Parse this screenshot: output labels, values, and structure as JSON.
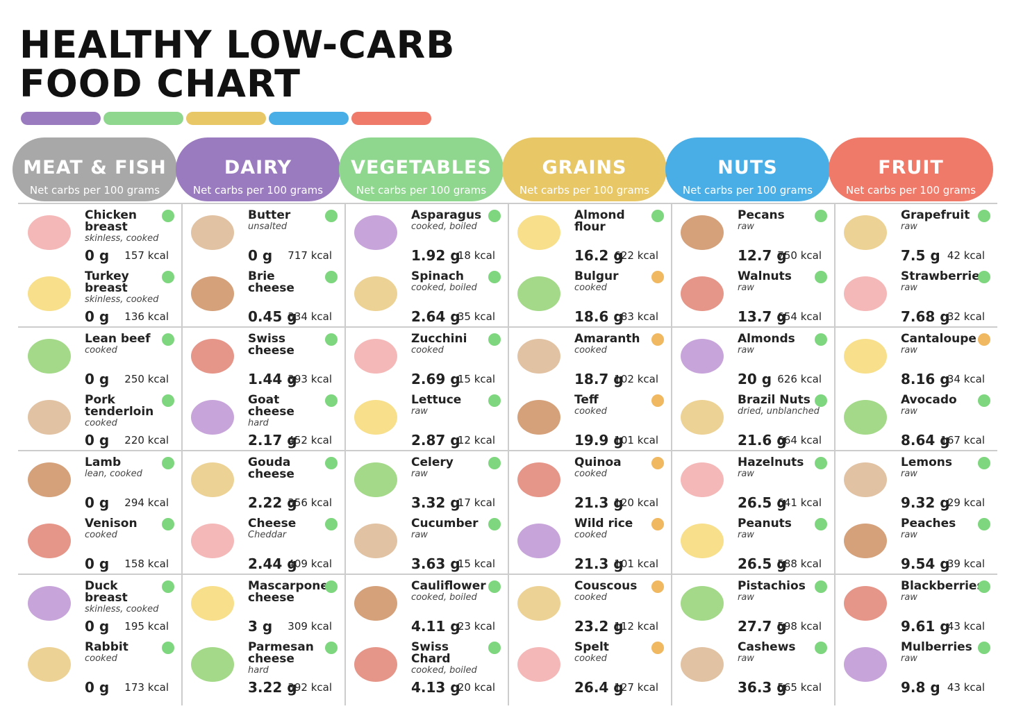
{
  "header": {
    "title_line1": "HEALTHY LOW-CARB",
    "title_line2": "FOOD CHART",
    "bar_colors": [
      "#9b7bbf",
      "#8fd68f",
      "#e8c766",
      "#4aaee6",
      "#ef7a6a"
    ]
  },
  "dot_colors": {
    "green": "#7ed67e",
    "orange": "#f0b860"
  },
  "columns": [
    {
      "title": "MEAT & FISH",
      "subtitle": "Net carbs per 100 grams",
      "color": "#a8a8a8",
      "items": [
        {
          "name": "Chicken breast",
          "note": "skinless, cooked",
          "carbs": "0 g",
          "kcal": "157 kcal",
          "dot": "green"
        },
        {
          "name": "Turkey breast",
          "note": "skinless, cooked",
          "carbs": "0 g",
          "kcal": "136 kcal",
          "dot": "green"
        },
        {
          "name": "Lean beef",
          "note": "cooked",
          "carbs": "0 g",
          "kcal": "250 kcal",
          "dot": "green"
        },
        {
          "name": "Pork tenderloin",
          "note": "cooked",
          "carbs": "0 g",
          "kcal": "220 kcal",
          "dot": "green"
        },
        {
          "name": "Lamb",
          "note": "lean, cooked",
          "carbs": "0 g",
          "kcal": "294 kcal",
          "dot": "green"
        },
        {
          "name": "Venison",
          "note": "cooked",
          "carbs": "0 g",
          "kcal": "158 kcal",
          "dot": "green"
        },
        {
          "name": "Duck breast",
          "note": "skinless, cooked",
          "carbs": "0 g",
          "kcal": "195 kcal",
          "dot": "green"
        },
        {
          "name": "Rabbit",
          "note": "cooked",
          "carbs": "0 g",
          "kcal": "173 kcal",
          "dot": "green"
        }
      ]
    },
    {
      "title": "DAIRY",
      "subtitle": "Net carbs per 100 grams",
      "color": "#9b7bbf",
      "items": [
        {
          "name": "Butter",
          "note": "unsalted",
          "carbs": "0 g",
          "kcal": "717 kcal",
          "dot": "green"
        },
        {
          "name": "Brie cheese",
          "carbs": "0.45 g",
          "kcal": "334 kcal",
          "dot": "green"
        },
        {
          "name": "Swiss cheese",
          "carbs": "1.44 g",
          "kcal": "393 kcal",
          "dot": "green"
        },
        {
          "name": "Goat cheese",
          "note": "hard",
          "carbs": "2.17 g",
          "kcal": "452 kcal",
          "dot": "green"
        },
        {
          "name": "Gouda cheese",
          "carbs": "2.22 g",
          "kcal": "356 kcal",
          "dot": "green"
        },
        {
          "name": "Cheese",
          "note": "Cheddar",
          "carbs": "2.44 g",
          "kcal": "409 kcal",
          "dot": "green"
        },
        {
          "name": "Mascarpone cheese",
          "carbs": "3 g",
          "kcal": "309 kcal",
          "dot": "green"
        },
        {
          "name": "Parmesan cheese",
          "note": "hard",
          "carbs": "3.22 g",
          "kcal": "392 kcal",
          "dot": "green"
        }
      ]
    },
    {
      "title": "VEGETABLES",
      "subtitle": "Net carbs per 100 grams",
      "color": "#8fd68f",
      "items": [
        {
          "name": "Asparagus",
          "note": "cooked, boiled",
          "carbs": "1.92 g",
          "kcal": "18 kcal",
          "dot": "green"
        },
        {
          "name": "Spinach",
          "note": "cooked, boiled",
          "carbs": "2.64 g",
          "kcal": "35 kcal",
          "dot": "green"
        },
        {
          "name": "Zucchini",
          "note": "cooked",
          "carbs": "2.69 g",
          "kcal": "15 kcal",
          "dot": "green"
        },
        {
          "name": "Lettuce",
          "note": "raw",
          "carbs": "2.87 g",
          "kcal": "12 kcal",
          "dot": "green"
        },
        {
          "name": "Celery",
          "note": "raw",
          "carbs": "3.32 g",
          "kcal": "17 kcal",
          "dot": "green"
        },
        {
          "name": "Cucumber",
          "note": "raw",
          "carbs": "3.63 g",
          "kcal": "15 kcal",
          "dot": "green"
        },
        {
          "name": "Cauliflower",
          "note": "cooked, boiled",
          "carbs": "4.11 g",
          "kcal": "23 kcal",
          "dot": "green"
        },
        {
          "name": "Swiss Chard",
          "note": "cooked, boiled",
          "carbs": "4.13 g",
          "kcal": "20 kcal",
          "dot": "green"
        }
      ]
    },
    {
      "title": "GRAINS",
      "subtitle": "Net carbs per 100 grams",
      "color": "#e8c766",
      "items": [
        {
          "name": "Almond flour",
          "carbs": "16.2 g",
          "kcal": "622 kcal",
          "dot": "green"
        },
        {
          "name": "Bulgur",
          "note": "cooked",
          "carbs": "18.6 g",
          "kcal": "83 kcal",
          "dot": "orange"
        },
        {
          "name": "Amaranth",
          "note": "cooked",
          "carbs": "18.7 g",
          "kcal": "102 kcal",
          "dot": "orange"
        },
        {
          "name": "Teff",
          "note": "cooked",
          "carbs": "19.9 g",
          "kcal": "101 kcal",
          "dot": "orange"
        },
        {
          "name": "Quinoa",
          "note": "cooked",
          "carbs": "21.3 g",
          "kcal": "120 kcal",
          "dot": "orange"
        },
        {
          "name": "Wild rice",
          "note": "cooked",
          "carbs": "21.3 g",
          "kcal": "101 kcal",
          "dot": "orange"
        },
        {
          "name": "Couscous",
          "note": "cooked",
          "carbs": "23.2 g",
          "kcal": "112 kcal",
          "dot": "orange"
        },
        {
          "name": "Spelt",
          "note": "cooked",
          "carbs": "26.4 g",
          "kcal": "127 kcal",
          "dot": "orange"
        }
      ]
    },
    {
      "title": "NUTS",
      "subtitle": "Net carbs per 100 grams",
      "color": "#4aaee6",
      "items": [
        {
          "name": "Pecans",
          "note": "raw",
          "carbs": "12.7 g",
          "kcal": "750 kcal",
          "dot": "green"
        },
        {
          "name": "Walnuts",
          "note": "raw",
          "carbs": "13.7 g",
          "kcal": "654 kcal",
          "dot": "green"
        },
        {
          "name": "Almonds",
          "note": "raw",
          "carbs": "20 g",
          "kcal": "626 kcal",
          "dot": "green"
        },
        {
          "name": "Brazil Nuts",
          "note": "dried, unblanched",
          "carbs": "21.6 g",
          "kcal": "664 kcal",
          "dot": "green"
        },
        {
          "name": "Hazelnuts",
          "note": "raw",
          "carbs": "26.5 g",
          "kcal": "641 kcal",
          "dot": "green"
        },
        {
          "name": "Peanuts",
          "note": "raw",
          "carbs": "26.5 g",
          "kcal": "588 kcal",
          "dot": "green"
        },
        {
          "name": "Pistachios",
          "note": "raw",
          "carbs": "27.7 g",
          "kcal": "598 kcal",
          "dot": "green"
        },
        {
          "name": "Cashews",
          "note": "raw",
          "carbs": "36.3 g",
          "kcal": "565 kcal",
          "dot": "green"
        }
      ]
    },
    {
      "title": "FRUIT",
      "subtitle": "Net carbs per 100 grams",
      "color": "#ef7a6a",
      "items": [
        {
          "name": "Grapefruit",
          "note": "raw",
          "carbs": "7.5 g",
          "kcal": "42 kcal",
          "dot": "green"
        },
        {
          "name": "Strawberries",
          "note": "raw",
          "carbs": "7.68 g",
          "kcal": "32 kcal",
          "dot": "green"
        },
        {
          "name": "Cantaloupe",
          "note": "raw",
          "carbs": "8.16 g",
          "kcal": "34 kcal",
          "dot": "orange"
        },
        {
          "name": "Avocado",
          "note": "raw",
          "carbs": "8.64 g",
          "kcal": "167 kcal",
          "dot": "green"
        },
        {
          "name": "Lemons",
          "note": "raw",
          "carbs": "9.32 g",
          "kcal": "29 kcal",
          "dot": "green"
        },
        {
          "name": "Peaches",
          "note": "raw",
          "carbs": "9.54 g",
          "kcal": "39 kcal",
          "dot": "green"
        },
        {
          "name": "Blackberries",
          "note": "raw",
          "carbs": "9.61 g",
          "kcal": "43 kcal",
          "dot": "green"
        },
        {
          "name": "Mulberries",
          "note": "raw",
          "carbs": "9.8 g",
          "kcal": "43 kcal",
          "dot": "green"
        }
      ]
    }
  ]
}
